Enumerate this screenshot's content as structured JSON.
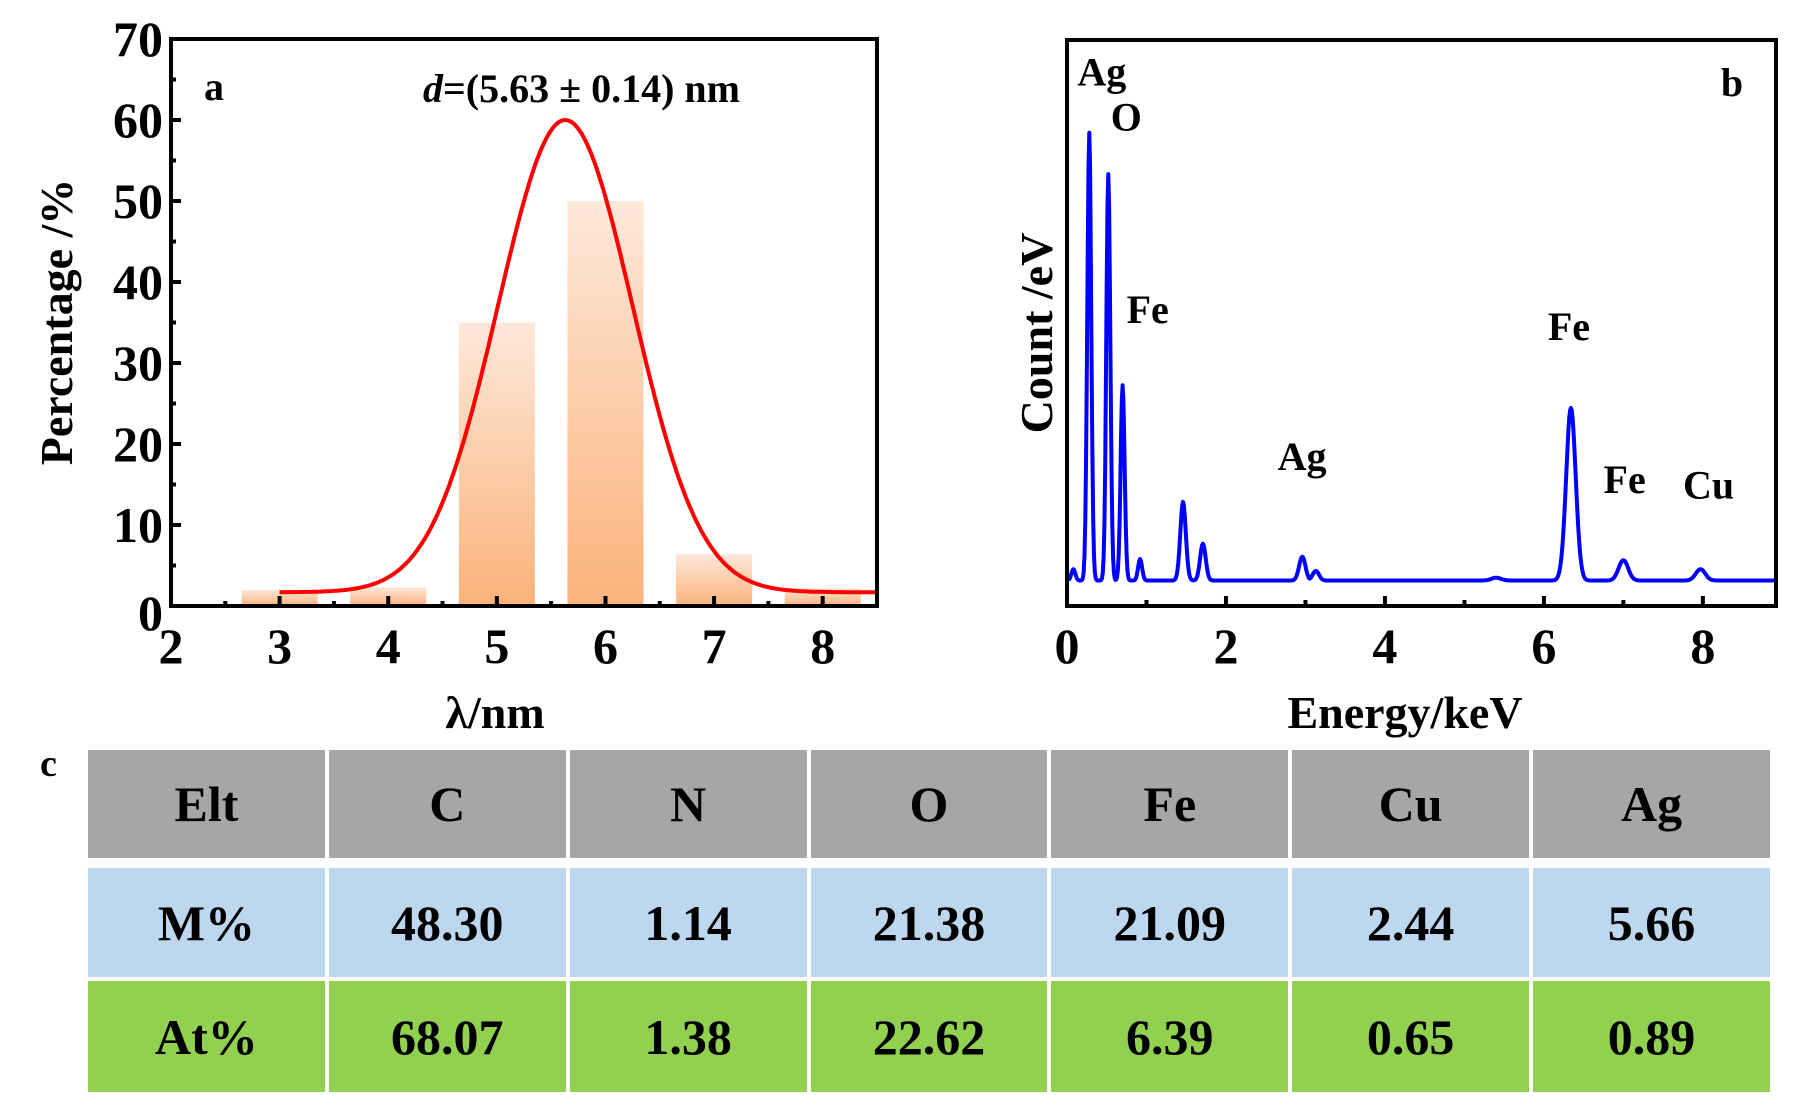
{
  "chart_data": [
    {
      "panel": "a",
      "type": "bar",
      "title": "",
      "annotation": {
        "italic_prefix": "d",
        "text": "=(5.63 ± 0.14) nm"
      },
      "xlabel": "λ/nm",
      "ylabel": "Percentage /%",
      "xlim": [
        2,
        8.5
      ],
      "ylim": [
        0,
        70
      ],
      "xticks": [
        2,
        3,
        4,
        5,
        6,
        7,
        8
      ],
      "yticks": [
        0,
        10,
        20,
        30,
        40,
        50,
        60,
        70
      ],
      "grid": false,
      "categories": [
        3,
        4,
        5,
        6,
        7,
        8
      ],
      "values": [
        2.0,
        2.3,
        35.0,
        50.0,
        6.4,
        2.2
      ],
      "bar_width": 0.7,
      "fit_curve": {
        "type": "gaussian",
        "center": 5.63,
        "peak": 60,
        "sigma": 0.62,
        "offset": 1.7,
        "x_range": [
          3,
          8.5
        ],
        "color": "#ff0000"
      },
      "bar_color_top": "#fde8da",
      "bar_color_bottom": "#fbb27a"
    },
    {
      "panel": "b",
      "type": "line",
      "title": "",
      "xlabel": "Energy/keV",
      "ylabel": "Count /eV",
      "xlim": [
        0,
        8.92
      ],
      "ylim": [
        0,
        100
      ],
      "y_units": "relative (a.u.)",
      "xticks": [
        0,
        2,
        4,
        6,
        8
      ],
      "grid": false,
      "color": "#0000ff",
      "baseline": 4.5,
      "peaks": [
        {
          "x": 0.08,
          "height": 6.5
        },
        {
          "x": 0.28,
          "height": 83.6
        },
        {
          "x": 0.52,
          "height": 76.3
        },
        {
          "x": 0.7,
          "height": 39.0
        },
        {
          "x": 0.92,
          "height": 8.3
        },
        {
          "x": 1.46,
          "height": 18.4
        },
        {
          "x": 1.71,
          "height": 11.0
        },
        {
          "x": 2.96,
          "height": 8.7
        },
        {
          "x": 3.13,
          "height": 6.2
        },
        {
          "x": 5.4,
          "height": 5.0
        },
        {
          "x": 6.34,
          "height": 35.0
        },
        {
          "x": 7.0,
          "height": 8.1
        },
        {
          "x": 7.97,
          "height": 6.5
        }
      ],
      "peak_labels": [
        {
          "text": "Ag",
          "x": 0.13,
          "y": 92
        },
        {
          "text": "O",
          "x": 0.55,
          "y": 84
        },
        {
          "text": "Fe",
          "x": 0.75,
          "y": 50
        },
        {
          "text": "Ag",
          "x": 2.65,
          "y": 24
        },
        {
          "text": "Fe",
          "x": 6.05,
          "y": 47
        },
        {
          "text": "Fe",
          "x": 6.75,
          "y": 20
        },
        {
          "text": "Cu",
          "x": 7.75,
          "y": 19
        }
      ]
    }
  ],
  "panel_labels": {
    "a": "a",
    "b": "b",
    "c": "c"
  },
  "table": {
    "headers": [
      "Elt",
      "C",
      "N",
      "O",
      "Fe",
      "Cu",
      "Ag"
    ],
    "rows": [
      {
        "label": "M%",
        "values": [
          "48.30",
          "1.14",
          "21.38",
          "21.09",
          "2.44",
          "5.66"
        ],
        "color": "#bdd7ee"
      },
      {
        "label": "At%",
        "values": [
          "68.07",
          "1.38",
          "22.62",
          "6.39",
          "0.65",
          "0.89"
        ],
        "color": "#92d050"
      }
    ],
    "header_color": "#a6a6a6"
  }
}
